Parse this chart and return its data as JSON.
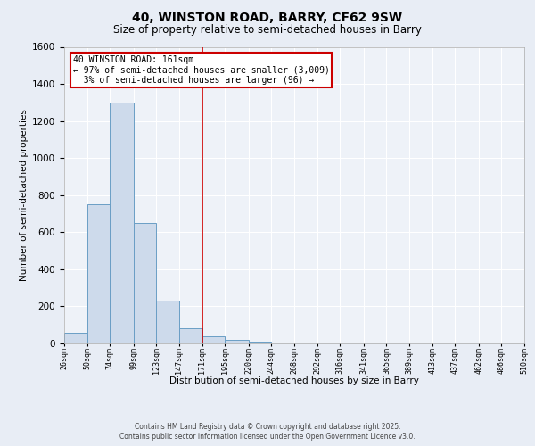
{
  "title": "40, WINSTON ROAD, BARRY, CF62 9SW",
  "subtitle": "Size of property relative to semi-detached houses in Barry",
  "xlabel": "Distribution of semi-detached houses by size in Barry",
  "ylabel": "Number of semi-detached properties",
  "bin_labels": [
    "26sqm",
    "50sqm",
    "74sqm",
    "99sqm",
    "123sqm",
    "147sqm",
    "171sqm",
    "195sqm",
    "220sqm",
    "244sqm",
    "268sqm",
    "292sqm",
    "316sqm",
    "341sqm",
    "365sqm",
    "389sqm",
    "413sqm",
    "437sqm",
    "462sqm",
    "486sqm",
    "510sqm"
  ],
  "bin_edges": [
    26,
    50,
    74,
    99,
    123,
    147,
    171,
    195,
    220,
    244,
    268,
    292,
    316,
    341,
    365,
    389,
    413,
    437,
    462,
    486,
    510
  ],
  "bar_heights": [
    60,
    750,
    1300,
    650,
    230,
    80,
    40,
    20,
    10,
    0,
    0,
    0,
    0,
    0,
    0,
    0,
    0,
    0,
    0,
    0
  ],
  "bar_color": "#cddaeb",
  "bar_edge_color": "#6a9ec5",
  "red_line_x": 171,
  "annotation_line1": "40 WINSTON ROAD: 161sqm",
  "annotation_line2": "← 97% of semi-detached houses are smaller (3,009)",
  "annotation_line3": "  3% of semi-detached houses are larger (96) →",
  "annotation_box_color": "#ffffff",
  "annotation_box_edge_color": "#cc0000",
  "ylim": [
    0,
    1600
  ],
  "yticks": [
    0,
    200,
    400,
    600,
    800,
    1000,
    1200,
    1400,
    1600
  ],
  "bg_color": "#e8edf5",
  "plot_bg_color": "#eef2f8",
  "grid_color": "#ffffff",
  "footer_line1": "Contains HM Land Registry data © Crown copyright and database right 2025.",
  "footer_line2": "Contains public sector information licensed under the Open Government Licence v3.0."
}
